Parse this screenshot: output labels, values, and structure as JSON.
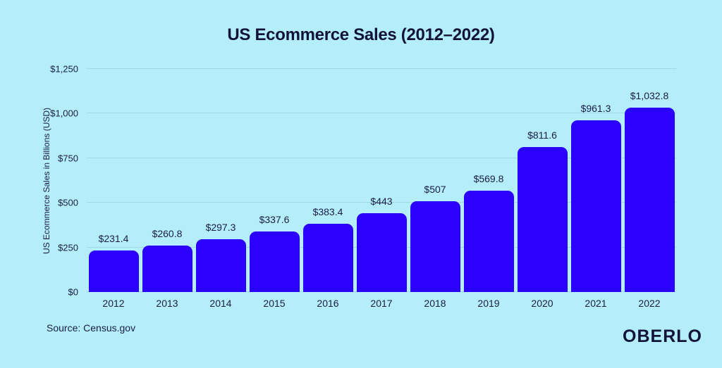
{
  "page": {
    "title": "US Ecommerce Sales (2012–2022)",
    "source": "Source: Census.gov",
    "brand": "OBERLO"
  },
  "colors": {
    "background": "#b3eefa",
    "bar": "#2b00fc",
    "title_text": "#131239",
    "axis_text": "#1b1b45",
    "gridline": "#a4d6e6"
  },
  "chart_data": {
    "type": "bar",
    "title": "US Ecommerce Sales (2012–2022)",
    "categories": [
      "2012",
      "2013",
      "2014",
      "2015",
      "2016",
      "2017",
      "2018",
      "2019",
      "2020",
      "2021",
      "2022"
    ],
    "values": [
      231.4,
      260.8,
      297.3,
      337.6,
      383.4,
      443,
      507,
      569.8,
      811.6,
      961.3,
      1032.8
    ],
    "value_labels": [
      "$231.4",
      "$260.8",
      "$297.3",
      "$337.6",
      "$383.4",
      "$443",
      "$507",
      "$569.8",
      "$811.6",
      "$961.3",
      "$1,032.8"
    ],
    "xlabel": "",
    "ylabel": "US Ecommerce Sales in Billions (USD)",
    "ylim": [
      0,
      1250
    ],
    "yticks": [
      0,
      250,
      500,
      750,
      1000,
      1250
    ],
    "ytick_labels": [
      "$0",
      "$250",
      "$500",
      "$750",
      "$1,000",
      "$1,250"
    ],
    "grid": true,
    "legend": "none",
    "source": "Source: Census.gov"
  }
}
